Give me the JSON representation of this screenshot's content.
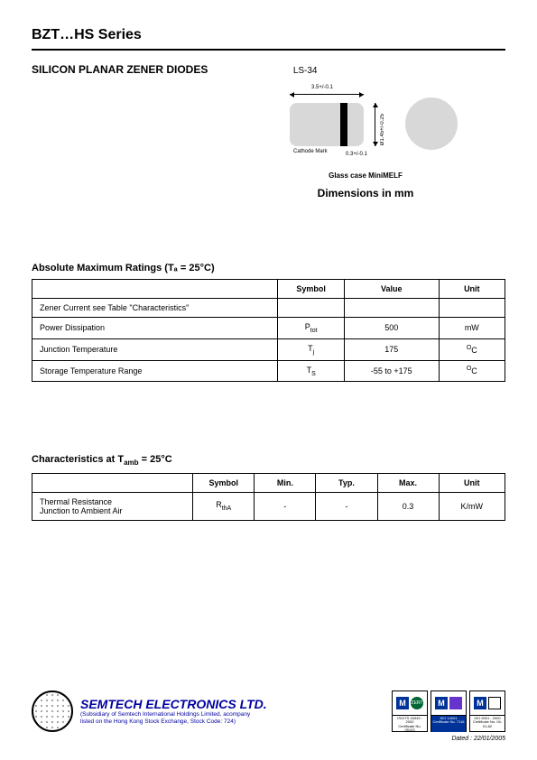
{
  "header": {
    "title": "BZT…HS Series",
    "subtitle": "SILICON PLANAR ZENER DIODES",
    "package_label": "LS-34"
  },
  "diagram": {
    "length_dim": "3.5+/-0.1",
    "diameter_dim": "Ø1.45+/-0.25",
    "band_dim": "0.3+/-0.1",
    "cathode_text": "Cathode Mark",
    "glass_case": "Glass case MiniMELF",
    "dim_label": "Dimensions in mm",
    "body_color": "#d8d8d8",
    "band_color": "#000000"
  },
  "abs_max": {
    "title": "Absolute Maximum Ratings (Tₐ = 25°C)",
    "columns": [
      "",
      "Symbol",
      "Value",
      "Unit"
    ],
    "col_widths": [
      "52%",
      "14%",
      "20%",
      "14%"
    ],
    "rows": [
      {
        "param": "Zener Current see Table \"Characteristics\"",
        "symbol": "",
        "value": "",
        "unit": ""
      },
      {
        "param": "Power Dissipation",
        "symbol": "P",
        "symbol_sub": "tot",
        "value": "500",
        "unit": "mW"
      },
      {
        "param": "Junction Temperature",
        "symbol": "T",
        "symbol_sub": "j",
        "value": "175",
        "unit_pre": "O",
        "unit": "C"
      },
      {
        "param": "Storage Temperature Range",
        "symbol": "T",
        "symbol_sub": "S",
        "value": "-55 to +175",
        "unit_pre": "O",
        "unit": "C"
      }
    ]
  },
  "chars": {
    "title": "Characteristics at T",
    "title_sub": "amb",
    "title_suffix": " = 25°C",
    "columns": [
      "",
      "Symbol",
      "Min.",
      "Typ.",
      "Max.",
      "Unit"
    ],
    "col_widths": [
      "34%",
      "13%",
      "13%",
      "13%",
      "13%",
      "14%"
    ],
    "rows": [
      {
        "param1": "Thermal Resistance",
        "param2": "Junction to Ambient Air",
        "symbol": "R",
        "symbol_sub": "thA",
        "min": "-",
        "typ": "-",
        "max": "0.3",
        "unit": "K/mW"
      }
    ]
  },
  "footer": {
    "company": "SEMTECH ELECTRONICS LTD.",
    "sub1": "(Subsidiary of Semtech International Holdings Limited, acompany",
    "sub2": "listed on the Hong Kong Stock Exchange, Stock Code: 724)",
    "company_color": "#0000a0",
    "certs": [
      {
        "iso": "ISO/TS 16949 : 2002",
        "cert": "Certificate No. 05103",
        "bot_class": ""
      },
      {
        "iso": "ISO 14001",
        "cert": "Certificate No. 7116",
        "bot_class": "blue"
      },
      {
        "iso": "ISO 9001 : 2000",
        "cert": "Certificate No. 04-01-82",
        "bot_class": ""
      }
    ],
    "dated": "Dated : 22/01/2005"
  }
}
